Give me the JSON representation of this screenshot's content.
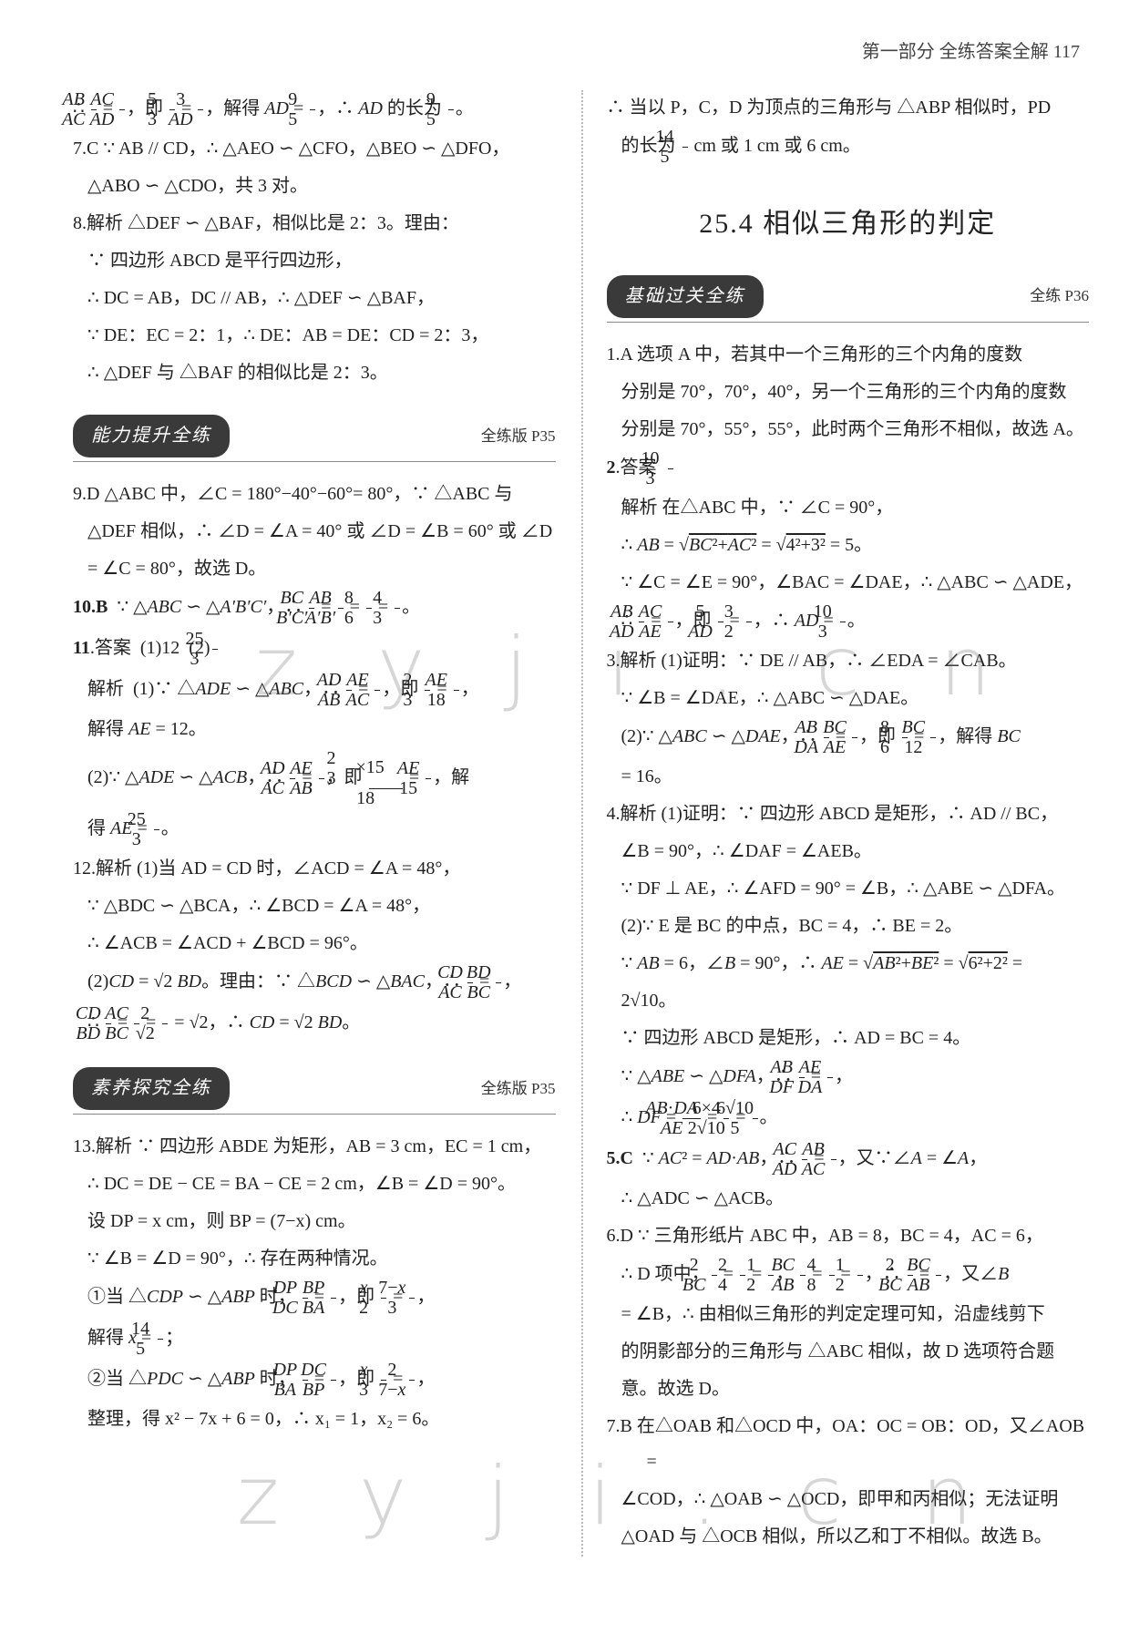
{
  "page_header": "第一部分  全练答案全解 117",
  "watermark_text": "z y j i . c n",
  "left": {
    "pre": [
      "∴ AB/AC = AC/AD，即 5/3 = 3/AD，解得 AD = 9/5，∴ AD 的长为 9/5。",
      "7.C  ∵ AB // CD，∴ △AEO ∽ △CFO，△BEO ∽ △DFO，",
      "△ABO ∽ △CDO，共 3 对。",
      "8.解析  △DEF ∽ △BAF，相似比是 2：3。理由：",
      "∵ 四边形 ABCD 是平行四边形，",
      "∴ DC = AB，DC // AB，∴ △DEF ∽ △BAF，",
      "∵ DE：EC = 2：1，∴ DE：AB = DE：CD = 2：3，",
      "∴ △DEF 与 △BAF 的相似比是 2：3。"
    ],
    "section1": {
      "title": "能力提升全练",
      "pageref": "全练版 P35"
    },
    "s1_items": [
      "9.D  △ABC 中，∠C = 180°−40°−60°= 80°，∵ △ABC 与",
      "△DEF 相似，∴ ∠D = ∠A = 40° 或 ∠D = ∠B = 60° 或 ∠D",
      "= ∠C = 80°，故选 D。",
      "10.B  ∵ △ABC ∽ △A′B′C′，∴ BC/B′C′ = AB/A′B′ = 8/6 = 4/3。",
      "11.答案  (1)12   (2)25/3",
      "   解析  (1)∵ △ADE ∽ △ABC，∴ AD/AB = AE/AC，即 2/3 = AE/18，",
      "解得 AE = 12。",
      "(2)∵ △ADE ∽ △ACB，∴ AD/AC = AE/AB，即 (2/3 ×15)/18 = AE/15，解",
      "得 AE = 25/3。",
      "12.解析  (1)当 AD = CD 时，∠ACD = ∠A = 48°，",
      "∵ △BDC ∽ △BCA，∴ ∠BCD = ∠A = 48°，",
      "∴ ∠ACB = ∠ACD + ∠BCD = 96°。",
      "(2)CD = √2 BD。理由：∵ △BCD ∽ △BAC，∴ CD/AC = BD/BC，",
      "∴ CD/BD = AC/BC = 2/√2 = √2，∴ CD = √2 BD。"
    ],
    "section2": {
      "title": "素养探究全练",
      "pageref": "全练版 P35"
    },
    "s2_items": [
      "13.解析  ∵ 四边形 ABDE 为矩形，AB = 3 cm，EC = 1 cm，",
      "∴ DC = DE − CE = BA − CE = 2 cm，∠B = ∠D = 90°。",
      "设 DP = x cm，则 BP = (7−x) cm。",
      "∵ ∠B = ∠D = 90°，∴ 存在两种情况。",
      "①当 △CDP ∽ △ABP 时，DP/DC = BP/BA，即 x/2 = (7−x)/3，",
      "解得 x = 14/5；",
      "②当 △PDC ∽ △ABP 时，DP/BA = DC/BP，即 x/3 = 2/(7−x)，",
      "整理，得 x² − 7x + 6 = 0，∴ x₁ = 1，x₂ = 6。"
    ]
  },
  "right": {
    "pre": [
      "∴ 当以 P，C，D 为顶点的三角形与 △ABP 相似时，PD",
      "的长为 14/5 cm 或 1 cm 或 6 cm。"
    ],
    "chapter_title": "25.4  相似三角形的判定",
    "section1": {
      "title": "基础过关全练",
      "pageref": "全练 P36"
    },
    "s1_items": [
      "1.A  选项 A 中，若其中一个三角形的三个内角的度数",
      "分别是 70°，70°，40°，另一个三角形的三个内角的度数",
      "分别是 70°，55°，55°，此时两个三角形不相似，故选 A。",
      "2.答案  10/3",
      "   解析  在△ABC 中，∵ ∠C = 90°，",
      "∴ AB = √(BC²+AC²) = √(4²+3²) = 5。",
      "∵ ∠C = ∠E = 90°，∠BAC = ∠DAE，∴ △ABC ∽ △ADE，",
      "∴ AB/AD = AC/AE，即 5/AD = 3/2，∴ AD = 10/3。",
      "3.解析  (1)证明：∵ DE // AB，∴ ∠EDA = ∠CAB。",
      "∵ ∠B = ∠DAE，∴ △ABC ∽ △DAE。",
      "(2)∵ △ABC ∽ △DAE，∴ AB/DA = BC/AE，即 8/6 = BC/12，解得 BC",
      "= 16。",
      "4.解析  (1)证明：∵ 四边形 ABCD 是矩形，∴ AD // BC，",
      "∠B = 90°，∴ ∠DAF = ∠AEB。",
      "∵ DF ⊥ AE，∴ ∠AFD = 90° = ∠B，∴ △ABE ∽ △DFA。",
      "(2)∵ E 是 BC 的中点，BC = 4，∴ BE = 2。",
      "∵ AB = 6，∠B = 90°，∴ AE = √(AB²+BE²) = √(6²+2²) =",
      "2√10。",
      "∵ 四边形 ABCD 是矩形，∴ AD = BC = 4。",
      "∵ △ABE ∽ △DFA，∴ AB/DF = AE/DA，",
      "∴ DF = (AB·DA)/AE = (6×4)/(2√10) = 6√10/5。",
      "5.C  ∵ AC² = AD·AB，∴ AC/AD = AB/AC，又∵∠A = ∠A，",
      "∴ △ADC ∽ △ACB。",
      "6.D  ∵ 三角形纸片 ABC 中，AB = 8，BC = 4，AC = 6，",
      "∴ D 项中，2/BC = 2/4 = 1/2，BC/AB = 4/8 = 1/2，∴ 2/BC = BC/AB，又∠B",
      "= ∠B，∴ 由相似三角形的判定定理可知，沿虚线剪下",
      "的阴影部分的三角形与 △ABC 相似，故 D 选项符合题",
      "意。故选 D。",
      "7.B  在△OAB 和△OCD 中，OA：OC = OB：OD，又∠AOB =",
      "∠COD，∴ △OAB ∽ △OCD，即甲和丙相似；无法证明",
      "△OAD 与 △OCB 相似，所以乙和丁不相似。故选 B。"
    ]
  }
}
